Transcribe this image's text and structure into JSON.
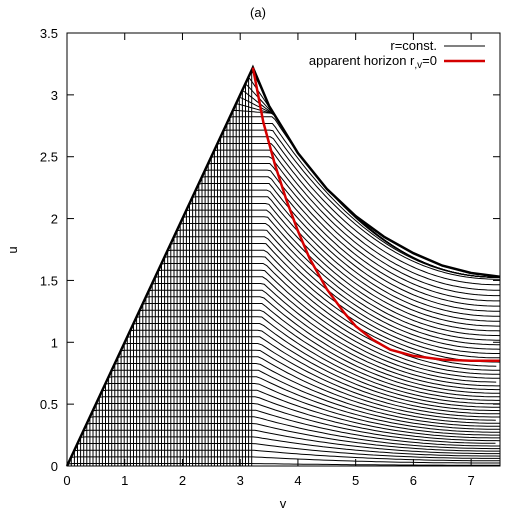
{
  "chart_data": {
    "type": "line",
    "title": "(a)",
    "xlabel": "v",
    "ylabel": "u",
    "xlim": [
      0,
      7.5
    ],
    "ylim": [
      0,
      3.5
    ],
    "xticks": [
      "0",
      "1",
      "2",
      "3",
      "4",
      "5",
      "6",
      "7"
    ],
    "yticks": [
      "0",
      "0.5",
      "1",
      "1.5",
      "2",
      "2.5",
      "3",
      "3.5"
    ],
    "grid": false,
    "legend_position": "top-right",
    "legend": [
      {
        "label": "r=const.",
        "color": "#000000"
      },
      {
        "label_main": "apparent horizon r",
        "label_sub": ",v",
        "label_tail": "=0",
        "color": "#d40000"
      }
    ],
    "boundary": {
      "x": [
        0,
        3.22,
        3.5,
        4.0,
        4.5,
        5.0,
        5.5,
        6.0,
        6.5,
        7.0,
        7.5
      ],
      "y": [
        0,
        3.22,
        2.91,
        2.53,
        2.24,
        2.02,
        1.85,
        1.72,
        1.62,
        1.56,
        1.53
      ]
    },
    "apparent_horizon": {
      "x": [
        3.22,
        3.4,
        3.6,
        3.8,
        4.0,
        4.2,
        4.5,
        4.8,
        5.0,
        5.3,
        5.6,
        6.0,
        6.5,
        7.0,
        7.5
      ],
      "y": [
        3.22,
        2.78,
        2.44,
        2.15,
        1.9,
        1.68,
        1.43,
        1.24,
        1.13,
        1.02,
        0.94,
        0.89,
        0.86,
        0.85,
        0.85
      ]
    },
    "r_const_curves": {
      "count": 60,
      "peak_range": [
        0.02,
        3.2
      ]
    }
  }
}
